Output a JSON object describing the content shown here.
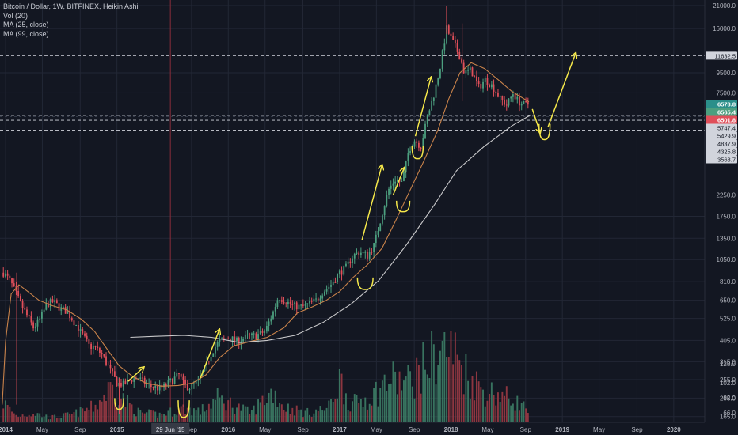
{
  "legend": {
    "title": "Bitcoin / Dollar, 1W, BITFINEX, Heikin Ashi",
    "vol": "Vol (20)",
    "ma25": "MA (25, close)",
    "ma99": "MA (99, close)"
  },
  "colors": {
    "background": "#131722",
    "grid": "#222735",
    "up": "#4c9f7f",
    "down": "#e04f5a",
    "volume_up": "#3d7d66",
    "volume_down": "#9b3a44",
    "ma25": "#c8824a",
    "ma99": "#c9c9cb",
    "annotation": "#f5e84a",
    "current_price": "#2b8f8a",
    "crosshair_vertical": "#8a2c3a",
    "axis_text": "#b2b5be"
  },
  "chart_data": {
    "type": "candlestick",
    "title": "Bitcoin / Dollar, 1W, BITFINEX, Heikin Ashi",
    "scale": "log",
    "ylim": [
      160,
      22000
    ],
    "price_axis_ticks": [
      21000.0,
      16000.0,
      9500.0,
      7500.0,
      2250.0,
      1750.0,
      1350.0,
      1050.0,
      810.0,
      650.0,
      525.0,
      405.0,
      315.0,
      255.0,
      205.0,
      165.0
    ],
    "volume_axis_ticks": [
      "128.0",
      "102.0",
      "82.0",
      "66.0",
      "53.0"
    ],
    "price_labels": [
      {
        "value": 11632.5,
        "text": "11632.5",
        "style": "white"
      },
      {
        "value": 6578.8,
        "text": "6578.8",
        "style": "teal"
      },
      {
        "value": 6565.4,
        "text": "6565.4",
        "style": "green"
      },
      {
        "value": 6501.8,
        "text": "6501.8",
        "style": "red"
      },
      {
        "value": 5747.4,
        "text": "5747.4",
        "style": "white"
      },
      {
        "value": 5429.9,
        "text": "5429.9",
        "style": "white"
      },
      {
        "value": 4837.9,
        "text": "4837.9",
        "style": "white"
      },
      {
        "value": 4325.8,
        "text": "4325.8",
        "style": "white"
      },
      {
        "value": 3568.7,
        "text": "3568.7",
        "style": "white"
      }
    ],
    "time_axis_labels": [
      {
        "t": 2014.0,
        "text": "2014",
        "bold": true
      },
      {
        "t": 2014.33,
        "text": "May",
        "bold": false
      },
      {
        "t": 2014.67,
        "text": "Sep",
        "bold": false
      },
      {
        "t": 2015.0,
        "text": "2015",
        "bold": true
      },
      {
        "t": 2015.67,
        "text": "Sep",
        "bold": false
      },
      {
        "t": 2016.0,
        "text": "2016",
        "bold": true
      },
      {
        "t": 2016.33,
        "text": "May",
        "bold": false
      },
      {
        "t": 2016.67,
        "text": "Sep",
        "bold": false
      },
      {
        "t": 2017.0,
        "text": "2017",
        "bold": true
      },
      {
        "t": 2017.33,
        "text": "May",
        "bold": false
      },
      {
        "t": 2017.67,
        "text": "Sep",
        "bold": false
      },
      {
        "t": 2018.0,
        "text": "2018",
        "bold": true
      },
      {
        "t": 2018.33,
        "text": "May",
        "bold": false
      },
      {
        "t": 2018.67,
        "text": "Sep",
        "bold": false
      },
      {
        "t": 2019.0,
        "text": "2019",
        "bold": true
      },
      {
        "t": 2019.33,
        "text": "May",
        "bold": false
      },
      {
        "t": 2019.67,
        "text": "Sep",
        "bold": false
      },
      {
        "t": 2020.0,
        "text": "2020",
        "bold": true
      }
    ],
    "crosshair_date": {
      "t": 2015.48,
      "text": "29 Jun '15"
    },
    "horizontal_levels": [
      11632.5,
      5747.4,
      5429.9,
      4837.9
    ],
    "current_price": 6578.8,
    "price_path": [
      [
        2013.98,
        900
      ],
      [
        2014.04,
        820
      ],
      [
        2014.12,
        650
      ],
      [
        2014.18,
        560
      ],
      [
        2014.25,
        470
      ],
      [
        2014.31,
        520
      ],
      [
        2014.37,
        620
      ],
      [
        2014.43,
        640
      ],
      [
        2014.49,
        590
      ],
      [
        2014.55,
        570
      ],
      [
        2014.62,
        500
      ],
      [
        2014.68,
        440
      ],
      [
        2014.75,
        380
      ],
      [
        2014.81,
        370
      ],
      [
        2014.87,
        340
      ],
      [
        2014.92,
        300
      ],
      [
        2015.0,
        245
      ],
      [
        2015.06,
        240
      ],
      [
        2015.12,
        255
      ],
      [
        2015.19,
        260
      ],
      [
        2015.25,
        245
      ],
      [
        2015.31,
        235
      ],
      [
        2015.38,
        230
      ],
      [
        2015.44,
        238
      ],
      [
        2015.5,
        255
      ],
      [
        2015.56,
        270
      ],
      [
        2015.6,
        240
      ],
      [
        2015.66,
        232
      ],
      [
        2015.73,
        250
      ],
      [
        2015.8,
        300
      ],
      [
        2015.86,
        360
      ],
      [
        2015.92,
        400
      ],
      [
        2016.0,
        420
      ],
      [
        2016.08,
        400
      ],
      [
        2016.15,
        420
      ],
      [
        2016.25,
        430
      ],
      [
        2016.33,
        450
      ],
      [
        2016.4,
        560
      ],
      [
        2016.45,
        680
      ],
      [
        2016.5,
        650
      ],
      [
        2016.58,
        610
      ],
      [
        2016.66,
        600
      ],
      [
        2016.72,
        620
      ],
      [
        2016.79,
        650
      ],
      [
        2016.85,
        720
      ],
      [
        2016.92,
        780
      ],
      [
        2017.0,
        900
      ],
      [
        2017.06,
        960
      ],
      [
        2017.12,
        1100
      ],
      [
        2017.18,
        1150
      ],
      [
        2017.25,
        1100
      ],
      [
        2017.31,
        1250
      ],
      [
        2017.38,
        1800
      ],
      [
        2017.44,
        2400
      ],
      [
        2017.5,
        2700
      ],
      [
        2017.56,
        2600
      ],
      [
        2017.62,
        3800
      ],
      [
        2017.67,
        4300
      ],
      [
        2017.73,
        4000
      ],
      [
        2017.79,
        5700
      ],
      [
        2017.85,
        7500
      ],
      [
        2017.9,
        10000
      ],
      [
        2017.96,
        16000
      ],
      [
        2018.02,
        13500
      ],
      [
        2018.08,
        11500
      ],
      [
        2018.12,
        9500
      ],
      [
        2018.18,
        9800
      ],
      [
        2018.25,
        8000
      ],
      [
        2018.31,
        8800
      ],
      [
        2018.38,
        8000
      ],
      [
        2018.44,
        7000
      ],
      [
        2018.5,
        6500
      ],
      [
        2018.56,
        7500
      ],
      [
        2018.6,
        6800
      ],
      [
        2018.66,
        6500
      ],
      [
        2018.7,
        6580
      ]
    ],
    "ma25_path": [
      [
        2013.97,
        190
      ],
      [
        2014.0,
        400
      ],
      [
        2014.05,
        700
      ],
      [
        2014.12,
        780
      ],
      [
        2014.2,
        720
      ],
      [
        2014.3,
        650
      ],
      [
        2014.42,
        610
      ],
      [
        2014.55,
        580
      ],
      [
        2014.68,
        520
      ],
      [
        2014.8,
        450
      ],
      [
        2014.92,
        360
      ],
      [
        2015.02,
        300
      ],
      [
        2015.14,
        265
      ],
      [
        2015.26,
        245
      ],
      [
        2015.4,
        236
      ],
      [
        2015.55,
        238
      ],
      [
        2015.68,
        245
      ],
      [
        2015.8,
        270
      ],
      [
        2015.92,
        330
      ],
      [
        2016.05,
        380
      ],
      [
        2016.2,
        400
      ],
      [
        2016.35,
        420
      ],
      [
        2016.5,
        470
      ],
      [
        2016.62,
        560
      ],
      [
        2016.75,
        600
      ],
      [
        2016.88,
        650
      ],
      [
        2017.0,
        720
      ],
      [
        2017.12,
        850
      ],
      [
        2017.25,
        990
      ],
      [
        2017.38,
        1200
      ],
      [
        2017.5,
        1650
      ],
      [
        2017.62,
        2300
      ],
      [
        2017.75,
        3300
      ],
      [
        2017.88,
        4800
      ],
      [
        2017.98,
        7000
      ],
      [
        2018.08,
        9500
      ],
      [
        2018.18,
        10700
      ],
      [
        2018.3,
        10000
      ],
      [
        2018.42,
        8800
      ],
      [
        2018.55,
        7600
      ],
      [
        2018.7,
        6750
      ]
    ],
    "ma99_path": [
      [
        2015.12,
        420
      ],
      [
        2015.35,
        425
      ],
      [
        2015.6,
        430
      ],
      [
        2015.85,
        420
      ],
      [
        2016.1,
        395
      ],
      [
        2016.35,
        405
      ],
      [
        2016.6,
        430
      ],
      [
        2016.85,
        500
      ],
      [
        2017.1,
        620
      ],
      [
        2017.35,
        820
      ],
      [
        2017.6,
        1250
      ],
      [
        2017.85,
        2000
      ],
      [
        2018.05,
        3000
      ],
      [
        2018.3,
        4000
      ],
      [
        2018.55,
        5100
      ],
      [
        2018.72,
        5800
      ]
    ],
    "volume_profile": [
      [
        2013.98,
        0.25
      ],
      [
        2014.1,
        0.08
      ],
      [
        2014.25,
        0.12
      ],
      [
        2014.4,
        0.06
      ],
      [
        2014.6,
        0.1
      ],
      [
        2014.8,
        0.2
      ],
      [
        2014.95,
        0.45
      ],
      [
        2015.05,
        0.3
      ],
      [
        2015.2,
        0.12
      ],
      [
        2015.4,
        0.1
      ],
      [
        2015.6,
        0.18
      ],
      [
        2015.75,
        0.14
      ],
      [
        2015.9,
        0.3
      ],
      [
        2016.05,
        0.22
      ],
      [
        2016.2,
        0.12
      ],
      [
        2016.4,
        0.4
      ],
      [
        2016.5,
        0.2
      ],
      [
        2016.7,
        0.12
      ],
      [
        2016.9,
        0.18
      ],
      [
        2017.0,
        0.55
      ],
      [
        2017.1,
        0.22
      ],
      [
        2017.3,
        0.35
      ],
      [
        2017.45,
        0.55
      ],
      [
        2017.6,
        0.5
      ],
      [
        2017.75,
        0.7
      ],
      [
        2017.85,
        0.85
      ],
      [
        2017.95,
        0.95
      ],
      [
        2018.05,
        0.85
      ],
      [
        2018.15,
        0.6
      ],
      [
        2018.3,
        0.4
      ],
      [
        2018.45,
        0.35
      ],
      [
        2018.6,
        0.25
      ],
      [
        2018.7,
        0.15
      ]
    ],
    "annotations": {
      "arrows": [
        {
          "from": [
            2015.1,
            250
          ],
          "to": [
            2015.24,
            295
          ]
        },
        {
          "from": [
            2015.75,
            260
          ],
          "to": [
            2015.92,
            460
          ]
        },
        {
          "from": [
            2017.2,
            1320
          ],
          "to": [
            2017.38,
            3200
          ]
        },
        {
          "from": [
            2017.48,
            2250
          ],
          "to": [
            2017.58,
            3100
          ]
        },
        {
          "from": [
            2017.68,
            4500
          ],
          "to": [
            2017.82,
            9000
          ]
        },
        {
          "from": [
            2018.73,
            6200
          ],
          "to": [
            2018.8,
            4700
          ]
        },
        {
          "from": [
            2018.87,
            5000
          ],
          "to": [
            2019.12,
            12000
          ]
        }
      ],
      "cups": [
        {
          "t": 2015.02,
          "top": 205,
          "bottom": 185,
          "half_width": 0.04
        },
        {
          "t": 2015.6,
          "top": 200,
          "bottom": 168,
          "half_width": 0.05
        },
        {
          "t": 2017.23,
          "top": 850,
          "bottom": 760,
          "half_width": 0.07
        },
        {
          "t": 2017.57,
          "top": 2100,
          "bottom": 1900,
          "half_width": 0.06
        },
        {
          "t": 2017.7,
          "top": 4000,
          "bottom": 3550,
          "half_width": 0.05
        },
        {
          "t": 2018.84,
          "top": 5200,
          "bottom": 4450,
          "half_width": 0.05
        }
      ]
    }
  }
}
